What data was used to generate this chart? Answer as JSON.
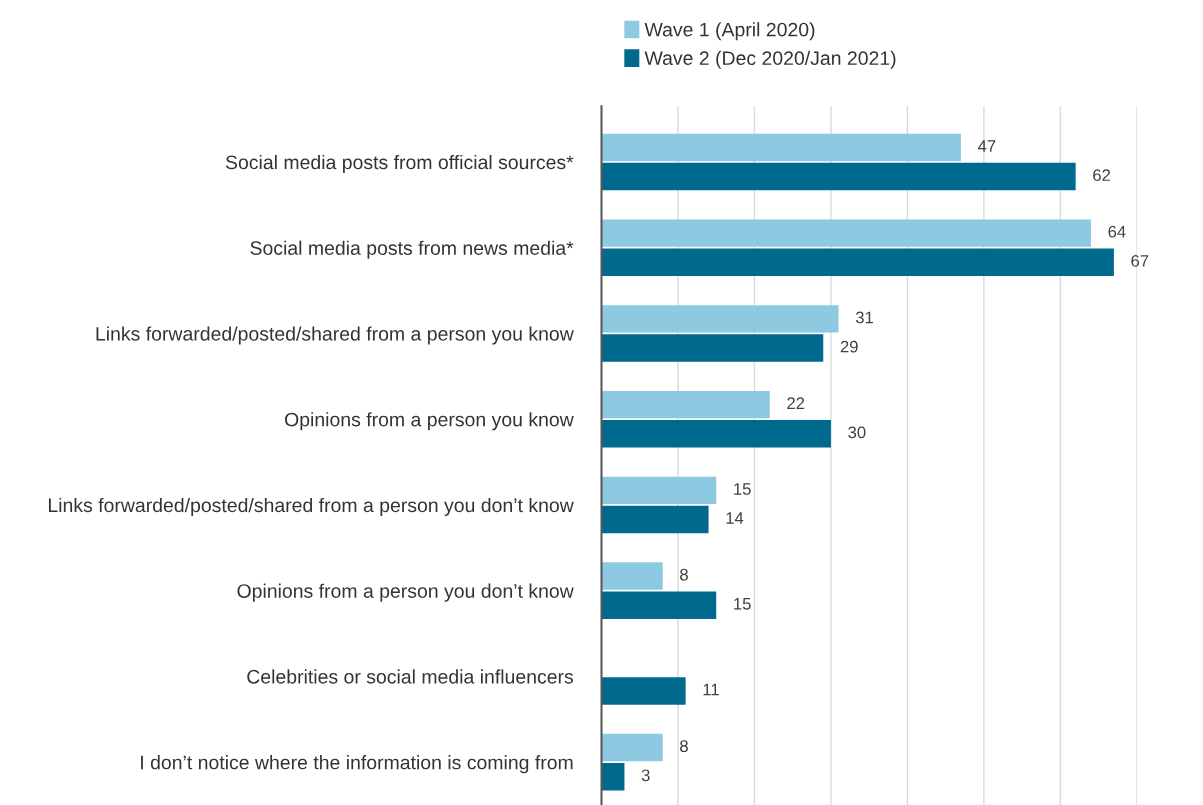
{
  "chart_data": {
    "type": "bar",
    "orientation": "horizontal",
    "categories": [
      "Social media posts from official sources*",
      "Social media posts from news media*",
      "Links forwarded/posted/shared from a person you know",
      "Opinions from a person you know",
      "Links forwarded/posted/shared from a person you don’t know",
      "Opinions from a person you don’t know",
      "Celebrities or social media influencers",
      "I don’t notice where the information is coming from"
    ],
    "series": [
      {
        "name": "Wave 1 (April 2020)",
        "color": "#8ec9e2",
        "values": [
          47,
          64,
          31,
          22,
          15,
          8,
          null,
          8
        ]
      },
      {
        "name": "Wave 2 (Dec 2020/Jan 2021)",
        "color": "#006a8e",
        "values": [
          62,
          67,
          29,
          30,
          14,
          15,
          11,
          3
        ]
      }
    ],
    "xlim": [
      0,
      70
    ],
    "xticks": [
      {
        "value": 10,
        "label": null
      },
      {
        "value": 20,
        "label": null
      },
      {
        "value": 30,
        "label": null
      },
      {
        "value": 40,
        "label": null
      },
      {
        "value": 50,
        "label": null
      },
      {
        "value": 60,
        "label": null
      },
      {
        "value": 70,
        "label": null
      }
    ],
    "tick_labels": "y",
    "grid": "x",
    "legend": "top",
    "data_labels": true
  }
}
